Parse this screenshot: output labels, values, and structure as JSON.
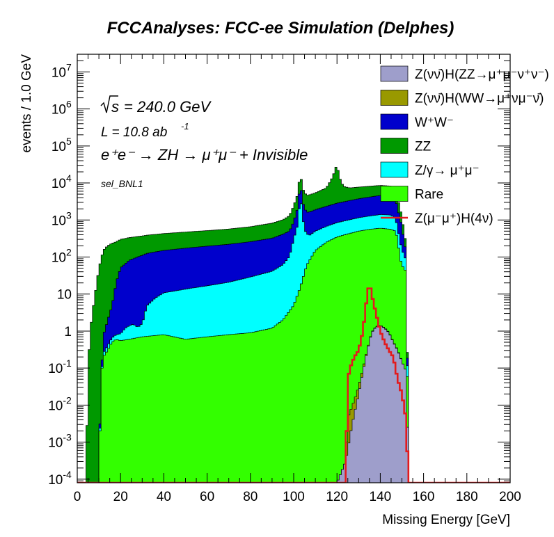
{
  "chart_data": {
    "type": "histogram",
    "title": "FCCAnalyses: FCC-ee Simulation (Delphes)",
    "xlabel": "Missing Energy [GeV]",
    "ylabel": "events / 1.0 GeV",
    "xlim": [
      0,
      200
    ],
    "ylim": [
      8e-05,
      30000000
    ],
    "yscale": "log",
    "bin_width": 1.0,
    "x_ticks": [
      "0",
      "20",
      "40",
      "60",
      "80",
      "100",
      "120",
      "140",
      "160",
      "180",
      "200"
    ],
    "y_ticks": [
      {
        "base": "10",
        "exp": "-4",
        "value": 0.0001
      },
      {
        "base": "10",
        "exp": "-3",
        "value": 0.001
      },
      {
        "base": "10",
        "exp": "-2",
        "value": 0.01
      },
      {
        "base": "10",
        "exp": "-1",
        "value": 0.1
      },
      {
        "base": "1",
        "exp": "",
        "value": 1
      },
      {
        "base": "10",
        "exp": "",
        "value": 10
      },
      {
        "base": "10",
        "exp": "2",
        "value": 100
      },
      {
        "base": "10",
        "exp": "3",
        "value": 1000
      },
      {
        "base": "10",
        "exp": "4",
        "value": 10000
      },
      {
        "base": "10",
        "exp": "5",
        "value": 100000
      },
      {
        "base": "10",
        "exp": "6",
        "value": 1000000
      },
      {
        "base": "10",
        "exp": "7",
        "value": 10000000
      }
    ],
    "annotations": {
      "sqrt_s": "= 240.0 GeV",
      "lumi_prefix": "L = 10.8 ab",
      "lumi_exp": "-1",
      "process": "e⁺e⁻ → ZH → μ⁺μ⁻ + Invisible",
      "selection": "sel_BNL1"
    },
    "legend_position": "top-right",
    "stack_order_bottom_to_top": [
      "ZvvHZZ",
      "ZvvHWW",
      "Rare",
      "Zgamma",
      "WW",
      "ZZ"
    ],
    "series": [
      {
        "id": "ZvvHZZ",
        "name": "Z(νν̄)H(ZZ→μ⁺μ⁻ν⁺ν⁻)",
        "color": "#9e9ecb",
        "style": "stacked",
        "points": [
          [
            120,
            8e-05
          ],
          [
            124,
            0.0003
          ],
          [
            127,
            0.003
          ],
          [
            130,
            0.02
          ],
          [
            132,
            0.08
          ],
          [
            134,
            0.3
          ],
          [
            136,
            0.9
          ],
          [
            138,
            1.3
          ],
          [
            140,
            1.4
          ],
          [
            142,
            1.2
          ],
          [
            144,
            0.9
          ],
          [
            146,
            0.5
          ],
          [
            148,
            0.3
          ],
          [
            150,
            0.15
          ],
          [
            152,
            0.08
          ],
          [
            153,
            8e-05
          ]
        ]
      },
      {
        "id": "ZvvHWW",
        "name": "Z(νν̄)H(WW→μ⁺νμ⁻ν̄)",
        "color": "#999900",
        "style": "stacked",
        "points": [
          [
            124,
            8e-05
          ],
          [
            125,
            0.004
          ],
          [
            128,
            0.008
          ],
          [
            132,
            0.018
          ],
          [
            136,
            0.025
          ],
          [
            140,
            0.028
          ],
          [
            144,
            0.022
          ],
          [
            147,
            0.016
          ],
          [
            149,
            0.008
          ],
          [
            150,
            0.002
          ],
          [
            151,
            0.0004
          ],
          [
            152,
            8e-05
          ]
        ]
      },
      {
        "id": "Rare",
        "name": "Rare",
        "color": "#33ff00",
        "style": "stacked",
        "points": [
          [
            10,
            8e-05
          ],
          [
            11,
            0.05
          ],
          [
            12,
            0.2
          ],
          [
            14,
            0.3
          ],
          [
            16,
            0.5
          ],
          [
            18,
            0.6
          ],
          [
            20,
            0.55
          ],
          [
            24,
            0.6
          ],
          [
            30,
            0.7
          ],
          [
            40,
            0.8
          ],
          [
            50,
            0.6
          ],
          [
            60,
            0.7
          ],
          [
            70,
            0.8
          ],
          [
            80,
            0.9
          ],
          [
            90,
            1.2
          ],
          [
            95,
            2
          ],
          [
            100,
            5
          ],
          [
            103,
            15
          ],
          [
            106,
            60
          ],
          [
            110,
            150
          ],
          [
            115,
            250
          ],
          [
            120,
            350
          ],
          [
            125,
            420
          ],
          [
            130,
            500
          ],
          [
            135,
            560
          ],
          [
            140,
            600
          ],
          [
            145,
            560
          ],
          [
            147,
            500
          ],
          [
            148,
            300
          ],
          [
            149,
            100
          ],
          [
            150,
            60
          ],
          [
            152,
            40
          ],
          [
            153,
            8e-05
          ]
        ]
      },
      {
        "id": "Zgamma",
        "name": "Z/γ→ μ⁺μ⁻",
        "color": "#00ffff",
        "style": "stacked",
        "points": [
          [
            10,
            8e-05
          ],
          [
            12,
            0.05
          ],
          [
            14,
            0.1
          ],
          [
            16,
            0.15
          ],
          [
            18,
            0.2
          ],
          [
            20,
            0.3
          ],
          [
            22,
            0.6
          ],
          [
            24,
            0.8
          ],
          [
            26,
            0.9
          ],
          [
            28,
            0.6
          ],
          [
            30,
            0.9
          ],
          [
            32,
            4
          ],
          [
            36,
            7
          ],
          [
            40,
            10
          ],
          [
            50,
            13
          ],
          [
            60,
            16
          ],
          [
            70,
            20
          ],
          [
            80,
            28
          ],
          [
            90,
            40
          ],
          [
            95,
            60
          ],
          [
            98,
            100
          ],
          [
            100,
            300
          ],
          [
            102,
            800
          ],
          [
            103,
            5000
          ],
          [
            104,
            1500
          ],
          [
            105,
            500
          ],
          [
            107,
            300
          ],
          [
            110,
            350
          ],
          [
            120,
            500
          ],
          [
            130,
            650
          ],
          [
            140,
            800
          ],
          [
            145,
            800
          ],
          [
            147,
            600
          ],
          [
            148,
            350
          ],
          [
            150,
            100
          ],
          [
            152,
            40
          ],
          [
            153,
            8e-05
          ]
        ]
      },
      {
        "id": "WW",
        "name": "W⁺W⁻",
        "color": "#0000cc",
        "style": "stacked",
        "points": [
          [
            10,
            8e-05
          ],
          [
            12,
            0.5
          ],
          [
            14,
            1.5
          ],
          [
            16,
            4
          ],
          [
            18,
            20
          ],
          [
            20,
            50
          ],
          [
            24,
            80
          ],
          [
            28,
            100
          ],
          [
            32,
            120
          ],
          [
            40,
            140
          ],
          [
            50,
            160
          ],
          [
            60,
            180
          ],
          [
            70,
            200
          ],
          [
            80,
            230
          ],
          [
            90,
            280
          ],
          [
            95,
            350
          ],
          [
            98,
            400
          ],
          [
            100,
            600
          ],
          [
            102,
            1500
          ],
          [
            103,
            6000
          ],
          [
            104,
            2000
          ],
          [
            106,
            1200
          ],
          [
            110,
            1400
          ],
          [
            120,
            2000
          ],
          [
            130,
            2600
          ],
          [
            140,
            3200
          ],
          [
            145,
            3100
          ],
          [
            147,
            2500
          ],
          [
            148,
            1500
          ],
          [
            150,
            500
          ],
          [
            151,
            150
          ],
          [
            152,
            60
          ],
          [
            153,
            8e-05
          ]
        ]
      },
      {
        "id": "ZZ",
        "name": "ZZ",
        "color": "#009900",
        "style": "stacked",
        "points": [
          [
            4,
            8e-05
          ],
          [
            5,
            0.1
          ],
          [
            6,
            1
          ],
          [
            7,
            3
          ],
          [
            8,
            8
          ],
          [
            10,
            50
          ],
          [
            12,
            150
          ],
          [
            14,
            200
          ],
          [
            16,
            230
          ],
          [
            20,
            250
          ],
          [
            30,
            260
          ],
          [
            40,
            280
          ],
          [
            50,
            300
          ],
          [
            60,
            320
          ],
          [
            70,
            350
          ],
          [
            80,
            400
          ],
          [
            90,
            500
          ],
          [
            95,
            600
          ],
          [
            98,
            800
          ],
          [
            100,
            1500
          ],
          [
            102,
            3000
          ],
          [
            103,
            10000
          ],
          [
            104,
            4000
          ],
          [
            106,
            3000
          ],
          [
            110,
            3500
          ],
          [
            115,
            5000
          ],
          [
            118,
            12000
          ],
          [
            120,
            30000
          ],
          [
            121,
            12000
          ],
          [
            123,
            5000
          ],
          [
            126,
            4000
          ],
          [
            130,
            4000
          ],
          [
            140,
            4000
          ],
          [
            145,
            3800
          ],
          [
            147,
            3000
          ],
          [
            148,
            1800
          ],
          [
            150,
            600
          ],
          [
            151,
            200
          ],
          [
            152,
            80
          ],
          [
            153,
            8e-05
          ]
        ]
      },
      {
        "id": "signal",
        "name": "Z(μ⁻μ⁺)H(4ν)",
        "color": "#e31a1c",
        "style": "line",
        "points": [
          [
            0,
            8e-05
          ],
          [
            124,
            8e-05
          ],
          [
            125,
            0.05
          ],
          [
            126,
            0.1
          ],
          [
            128,
            0.2
          ],
          [
            130,
            0.3
          ],
          [
            132,
            1
          ],
          [
            134,
            10
          ],
          [
            135,
            20
          ],
          [
            136,
            10
          ],
          [
            138,
            3
          ],
          [
            140,
            1
          ],
          [
            142,
            0.5
          ],
          [
            144,
            0.3
          ],
          [
            146,
            0.2
          ],
          [
            148,
            0.05
          ],
          [
            150,
            0.02
          ],
          [
            152,
            0.004
          ],
          [
            153,
            8e-05
          ],
          [
            200,
            8e-05
          ]
        ]
      }
    ]
  }
}
